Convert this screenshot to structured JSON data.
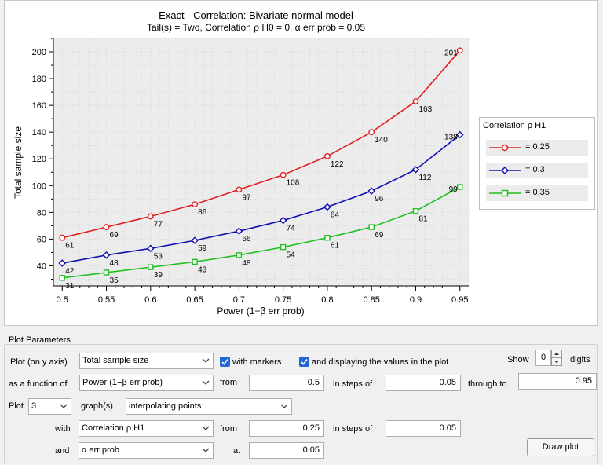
{
  "chart_data": {
    "type": "line",
    "title": "Exact - Correlation: Bivariate normal model",
    "subtitle": "Tail(s) = Two, Correlation ρ H0 = 0, α err prob = 0.05",
    "xlabel": "Power (1−β err prob)",
    "ylabel": "Total sample size",
    "x": [
      0.5,
      0.55,
      0.6,
      0.65,
      0.7,
      0.75,
      0.8,
      0.85,
      0.9,
      0.95
    ],
    "x_tick_labels": [
      "0.5",
      "0.55",
      "0.6",
      "0.65",
      "0.7",
      "0.75",
      "0.8",
      "0.85",
      "0.9",
      "0.95"
    ],
    "y_ticks": [
      40,
      60,
      80,
      100,
      120,
      140,
      160,
      180,
      200
    ],
    "xlim": [
      0.49,
      0.96
    ],
    "ylim": [
      25,
      210
    ],
    "grid": true,
    "legend_title": "Correlation ρ H1",
    "legend_position": "right",
    "series": [
      {
        "name": "= 0.25",
        "color": "#e02020",
        "marker": "circle",
        "values": [
          61,
          69,
          77,
          86,
          97,
          108,
          122,
          140,
          163,
          201
        ]
      },
      {
        "name": "= 0.3",
        "color": "#1010b0",
        "marker": "diamond",
        "values": [
          42,
          48,
          53,
          59,
          66,
          74,
          84,
          96,
          112,
          138
        ]
      },
      {
        "name": "= 0.35",
        "color": "#20c020",
        "marker": "square",
        "values": [
          31,
          35,
          39,
          43,
          48,
          54,
          61,
          69,
          81,
          99
        ]
      }
    ]
  },
  "params": {
    "section_title": "Plot Parameters",
    "plot_on_y_label": "Plot (on y axis)",
    "plot_on_y_value": "Total sample size",
    "with_markers_label": "with markers",
    "with_markers_checked": true,
    "display_values_label": "and displaying the values in the plot",
    "display_values_checked": true,
    "show_label": "Show",
    "digits_value": "0",
    "digits_label": "digits",
    "function_of_label": "as a function of",
    "function_of_value": "Power (1−β err prob)",
    "from_label": "from",
    "from_value": "0.5",
    "steps_label": "in steps of",
    "steps_value": "0.05",
    "through_label": "through to",
    "through_value": "0.95",
    "plot_label": "Plot",
    "graph_count": "3",
    "graphs_label": "graph(s)",
    "graph_mode": "interpolating points",
    "with_label": "with",
    "with_value": "Correlation ρ H1",
    "with_from_label": "from",
    "with_from_value": "0.25",
    "with_steps_label": "in steps of",
    "with_steps_value": "0.05",
    "and_label": "and",
    "and_value": "α err prob",
    "at_label": "at",
    "at_value": "0.05",
    "draw_button": "Draw plot"
  }
}
